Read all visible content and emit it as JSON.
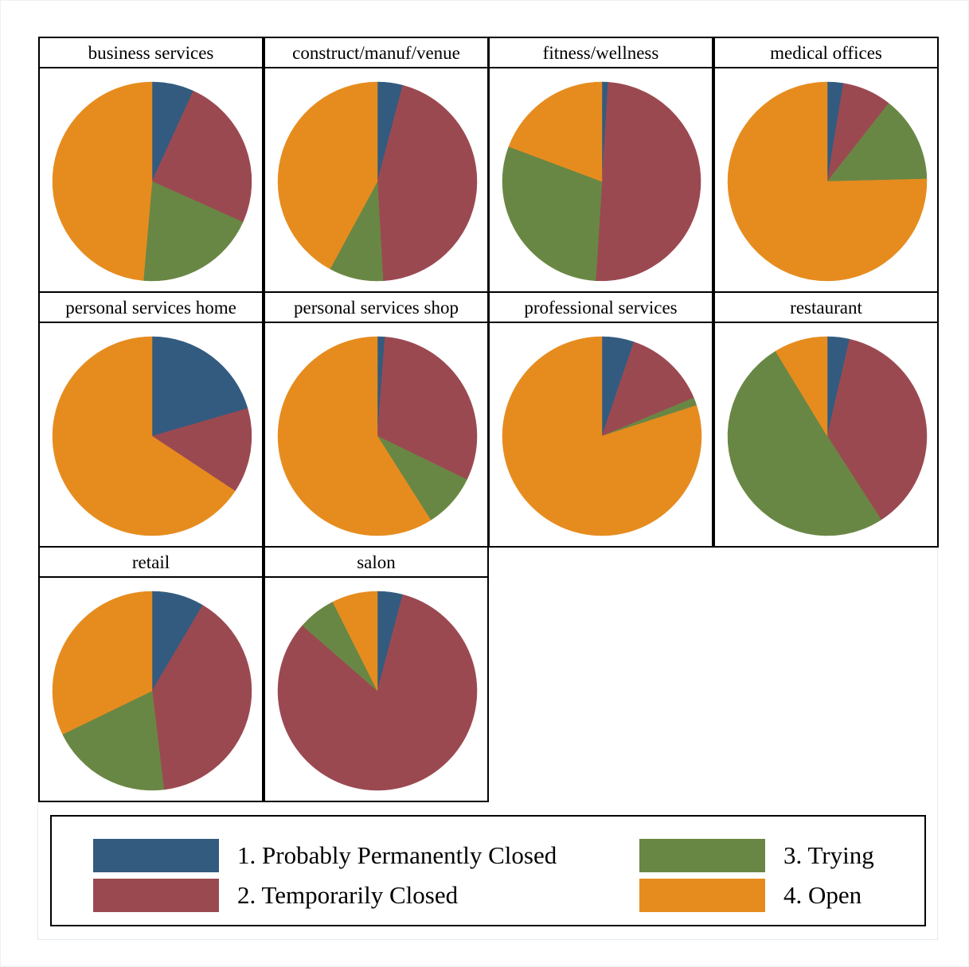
{
  "colors": {
    "probably_permanently_closed": "#335b7f",
    "temporarily_closed": "#9b4951",
    "trying": "#698744",
    "open": "#e68c1f"
  },
  "chart_data": {
    "type": "pie",
    "series_names": [
      "1. Probably Permanently Closed",
      "2. Temporarily Closed",
      "3. Trying",
      "4. Open"
    ],
    "panels": [
      {
        "title": "business services",
        "values": [
          0.068,
          0.249,
          0.197,
          0.486
        ]
      },
      {
        "title": "construct/manuf/venue",
        "values": [
          0.041,
          0.45,
          0.088,
          0.421
        ]
      },
      {
        "title": "fitness/wellness",
        "values": [
          0.01,
          0.5,
          0.297,
          0.193
        ]
      },
      {
        "title": "medical offices",
        "values": [
          0.026,
          0.08,
          0.14,
          0.754
        ]
      },
      {
        "title": "personal services home",
        "values": [
          0.205,
          0.138,
          0.0,
          0.657
        ]
      },
      {
        "title": "personal services shop",
        "values": [
          0.012,
          0.31,
          0.088,
          0.59
        ]
      },
      {
        "title": "professional services",
        "values": [
          0.052,
          0.135,
          0.013,
          0.8
        ]
      },
      {
        "title": "restaurant",
        "values": [
          0.036,
          0.373,
          0.504,
          0.087
        ]
      },
      {
        "title": "retail",
        "values": [
          0.085,
          0.396,
          0.197,
          0.322
        ]
      },
      {
        "title": "salon",
        "values": [
          0.041,
          0.823,
          0.062,
          0.074
        ]
      }
    ]
  },
  "legend": {
    "items": [
      {
        "label": "1. Probably Permanently Closed",
        "color_key": "probably_permanently_closed"
      },
      {
        "label": "3. Trying",
        "color_key": "trying"
      },
      {
        "label": "2. Temporarily Closed",
        "color_key": "temporarily_closed"
      },
      {
        "label": "4. Open",
        "color_key": "open"
      }
    ]
  }
}
